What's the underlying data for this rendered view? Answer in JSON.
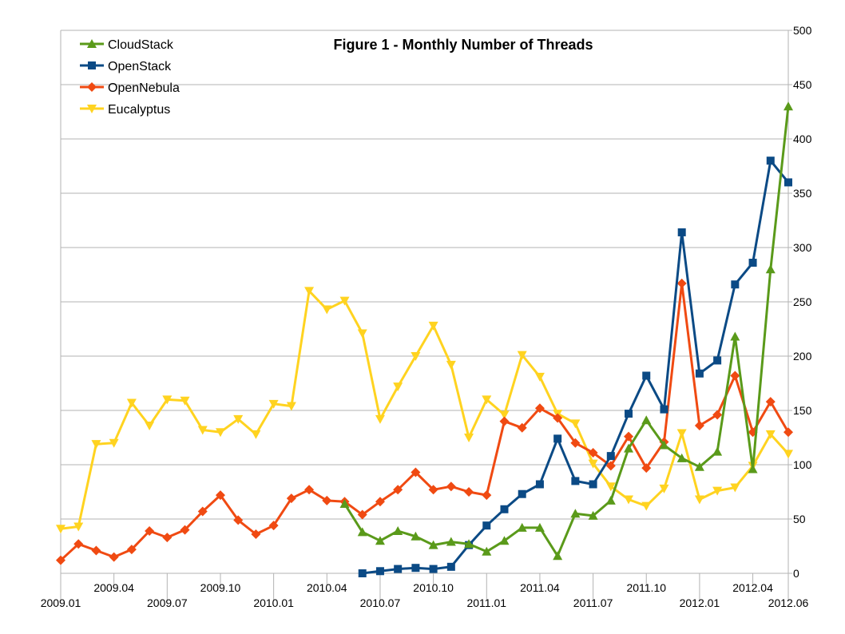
{
  "chart_data": {
    "type": "line",
    "title": "Figure 1 - Monthly Number of Threads",
    "xlabel": "",
    "ylabel": "",
    "x": [
      "2009.01",
      "2009.02",
      "2009.03",
      "2009.04",
      "2009.05",
      "2009.06",
      "2009.07",
      "2009.08",
      "2009.09",
      "2009.10",
      "2009.11",
      "2009.12",
      "2010.01",
      "2010.02",
      "2010.03",
      "2010.04",
      "2010.05",
      "2010.06",
      "2010.07",
      "2010.08",
      "2010.09",
      "2010.10",
      "2010.11",
      "2010.12",
      "2011.01",
      "2011.02",
      "2011.03",
      "2011.04",
      "2011.05",
      "2011.06",
      "2011.07",
      "2011.08",
      "2011.09",
      "2011.10",
      "2011.11",
      "2011.12",
      "2012.01",
      "2012.02",
      "2012.03",
      "2012.04",
      "2012.05",
      "2012.06"
    ],
    "x_tick_labels_lower": [
      "2009.01",
      "2009.07",
      "2010.01",
      "2010.07",
      "2011.01",
      "2011.07",
      "2012.01",
      "2012.06"
    ],
    "x_tick_labels_upper": [
      "2009.04",
      "2009.10",
      "2010.04",
      "2010.10",
      "2011.04",
      "2011.10",
      "2012.04"
    ],
    "ylim": [
      0,
      500
    ],
    "y_ticks": [
      "0",
      "50",
      "100",
      "150",
      "200",
      "250",
      "300",
      "350",
      "400",
      "450",
      "500"
    ],
    "y_axis_position": "right",
    "grid": "horizontal",
    "legend_position": "top-left",
    "series": [
      {
        "name": "CloudStack",
        "color": "#5a9a1a",
        "marker": "triangle-up",
        "values": [
          null,
          null,
          null,
          null,
          null,
          null,
          null,
          null,
          null,
          null,
          null,
          null,
          null,
          null,
          null,
          null,
          64,
          38,
          30,
          39,
          34,
          26,
          29,
          27,
          20,
          30,
          42,
          42,
          16,
          55,
          53,
          67,
          115,
          141,
          118,
          106,
          98,
          112,
          218,
          96,
          280,
          430
        ]
      },
      {
        "name": "OpenStack",
        "color": "#0b4a85",
        "marker": "square",
        "values": [
          null,
          null,
          null,
          null,
          null,
          null,
          null,
          null,
          null,
          null,
          null,
          null,
          null,
          null,
          null,
          null,
          null,
          0,
          2,
          4,
          5,
          4,
          6,
          26,
          44,
          59,
          73,
          82,
          124,
          85,
          82,
          108,
          147,
          182,
          151,
          314,
          184,
          196,
          266,
          286,
          380,
          360
        ]
      },
      {
        "name": "OpenNebula",
        "color": "#f04a12",
        "marker": "diamond",
        "values": [
          12,
          27,
          21,
          15,
          22,
          39,
          33,
          40,
          57,
          72,
          49,
          36,
          44,
          69,
          77,
          67,
          66,
          54,
          66,
          77,
          93,
          77,
          80,
          75,
          72,
          140,
          134,
          152,
          143,
          120,
          111,
          99,
          126,
          97,
          121,
          267,
          136,
          146,
          182,
          130,
          158,
          130
        ]
      },
      {
        "name": "Eucalyptus",
        "color": "#ffd320",
        "marker": "triangle-down",
        "values": [
          41,
          43,
          119,
          120,
          157,
          136,
          160,
          159,
          132,
          130,
          142,
          128,
          156,
          154,
          260,
          243,
          251,
          221,
          142,
          172,
          200,
          228,
          192,
          125,
          160,
          146,
          201,
          181,
          147,
          138,
          101,
          80,
          68,
          62,
          78,
          129,
          68,
          76,
          79,
          99,
          128,
          110
        ]
      }
    ]
  }
}
